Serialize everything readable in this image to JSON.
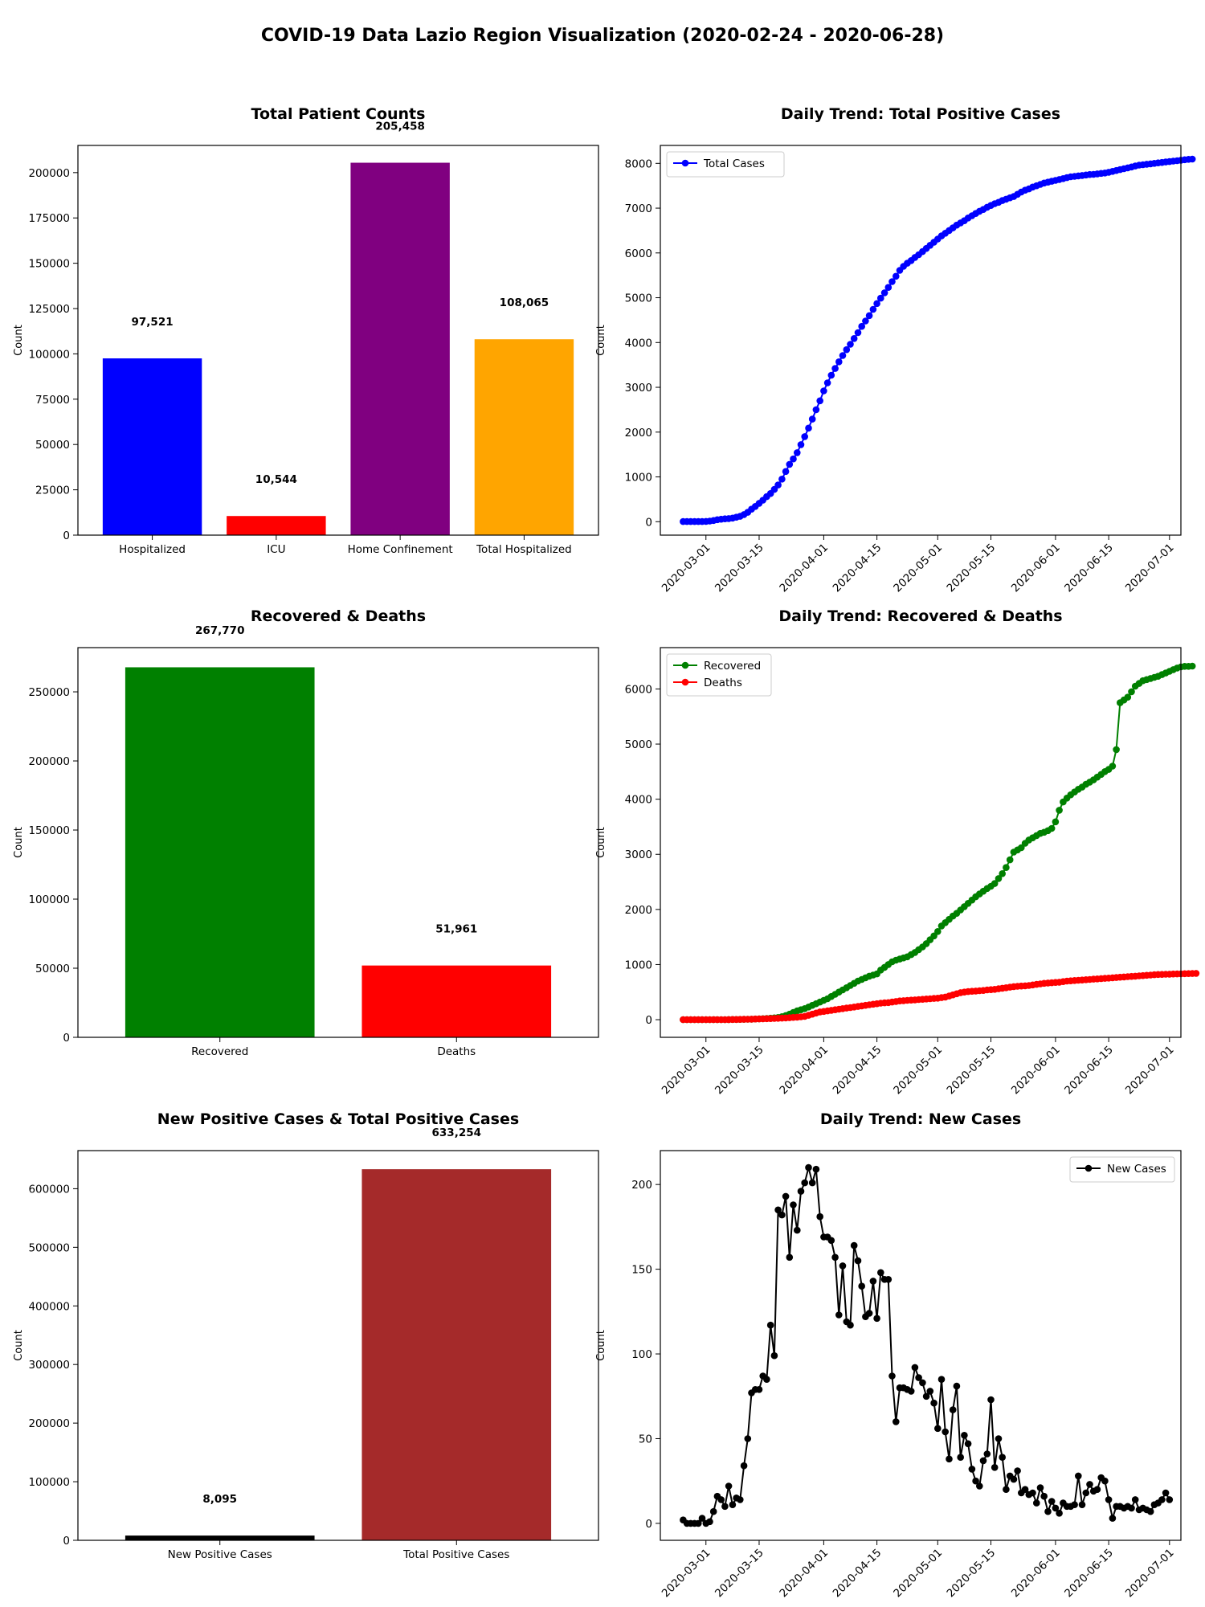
{
  "figure_title": "COVID-19 Data Lazio Region Visualization (2020-02-24 - 2020-06-28)",
  "chart_data": [
    {
      "id": "patients",
      "type": "bar",
      "title": "Total Patient Counts",
      "ylabel": "Count",
      "ylim": [
        0,
        215000
      ],
      "yticks": [
        0,
        25000,
        50000,
        75000,
        100000,
        125000,
        150000,
        175000,
        200000
      ],
      "categories": [
        "Hospitalized",
        "ICU",
        "Home Confinement",
        "Total Hospitalized"
      ],
      "values": [
        97521,
        10544,
        205458,
        108065
      ],
      "value_labels": [
        "97,521",
        "10,544",
        "205,458",
        "108,065"
      ],
      "colors": [
        "#0000ff",
        "#ff0000",
        "#800080",
        "#ffa500"
      ]
    },
    {
      "id": "positive",
      "type": "line",
      "title": "Daily Trend: Total Positive Cases",
      "ylabel": "Count",
      "ylim": [
        -300,
        8400
      ],
      "yticks": [
        0,
        1000,
        2000,
        3000,
        4000,
        5000,
        6000,
        7000,
        8000
      ],
      "xrange": [
        "2020-02-18",
        "2020-07-04"
      ],
      "xticks": [
        "2020-03-01",
        "2020-03-15",
        "2020-04-01",
        "2020-04-15",
        "2020-05-01",
        "2020-05-15",
        "2020-06-01",
        "2020-06-15",
        "2020-07-01"
      ],
      "start_date": "2020-02-24",
      "legend": "top-left",
      "series": [
        {
          "name": "Total Cases",
          "color": "#0000ff",
          "values": [
            3,
            3,
            3,
            3,
            3,
            3,
            6,
            14,
            27,
            44,
            56,
            64,
            70,
            80,
            100,
            120,
            160,
            210,
            280,
            340,
            410,
            480,
            560,
            630,
            720,
            820,
            950,
            1120,
            1280,
            1400,
            1540,
            1720,
            1900,
            2090,
            2290,
            2500,
            2700,
            2920,
            3100,
            3270,
            3420,
            3570,
            3710,
            3840,
            3960,
            4090,
            4220,
            4360,
            4480,
            4600,
            4740,
            4870,
            4990,
            5110,
            5230,
            5360,
            5480,
            5610,
            5700,
            5770,
            5830,
            5900,
            5960,
            6030,
            6100,
            6170,
            6240,
            6310,
            6380,
            6440,
            6500,
            6560,
            6620,
            6670,
            6720,
            6780,
            6830,
            6880,
            6930,
            6970,
            7020,
            7060,
            7100,
            7130,
            7170,
            7200,
            7230,
            7260,
            7310,
            7360,
            7400,
            7430,
            7470,
            7500,
            7530,
            7560,
            7580,
            7600,
            7620,
            7640,
            7660,
            7680,
            7700,
            7710,
            7720,
            7730,
            7740,
            7750,
            7755,
            7765,
            7775,
            7785,
            7800,
            7820,
            7840,
            7860,
            7880,
            7900,
            7920,
            7940,
            7960,
            7970,
            7980,
            7990,
            8000,
            8010,
            8020,
            8030,
            8040,
            8050,
            8060,
            8070,
            8080,
            8090,
            8095
          ]
        }
      ]
    },
    {
      "id": "recovered_deaths",
      "type": "bar",
      "title": "Recovered & Deaths",
      "ylabel": "Count",
      "ylim": [
        0,
        282000
      ],
      "yticks": [
        0,
        50000,
        100000,
        150000,
        200000,
        250000
      ],
      "categories": [
        "Recovered",
        "Deaths"
      ],
      "values": [
        267770,
        51961
      ],
      "value_labels": [
        "267,770",
        "51,961"
      ],
      "colors": [
        "#008000",
        "#ff0000"
      ]
    },
    {
      "id": "recovered_deaths_trend",
      "type": "line",
      "title": "Daily Trend: Recovered & Deaths",
      "ylabel": "Count",
      "ylim": [
        -320,
        6750
      ],
      "yticks": [
        0,
        1000,
        2000,
        3000,
        4000,
        5000,
        6000
      ],
      "xrange": [
        "2020-02-18",
        "2020-07-04"
      ],
      "xticks": [
        "2020-03-01",
        "2020-03-15",
        "2020-04-01",
        "2020-04-15",
        "2020-05-01",
        "2020-05-15",
        "2020-06-01",
        "2020-06-15",
        "2020-07-01"
      ],
      "start_date": "2020-02-24",
      "legend": "top-left",
      "series": [
        {
          "name": "Recovered",
          "color": "#008000",
          "values": [
            0,
            0,
            0,
            0,
            0,
            0,
            0,
            0,
            1,
            1,
            1,
            1,
            2,
            3,
            4,
            5,
            6,
            8,
            10,
            12,
            15,
            18,
            22,
            27,
            33,
            40,
            55,
            75,
            100,
            130,
            160,
            180,
            200,
            230,
            260,
            290,
            320,
            350,
            380,
            420,
            460,
            500,
            540,
            580,
            620,
            660,
            700,
            730,
            760,
            790,
            810,
            830,
            900,
            950,
            1000,
            1050,
            1080,
            1100,
            1120,
            1140,
            1180,
            1220,
            1270,
            1320,
            1380,
            1450,
            1520,
            1600,
            1700,
            1760,
            1820,
            1880,
            1930,
            1990,
            2050,
            2110,
            2170,
            2230,
            2280,
            2330,
            2380,
            2420,
            2470,
            2560,
            2650,
            2760,
            2900,
            3040,
            3080,
            3120,
            3200,
            3260,
            3300,
            3340,
            3380,
            3400,
            3430,
            3470,
            3590,
            3800,
            3950,
            4020,
            4080,
            4130,
            4180,
            4220,
            4270,
            4310,
            4350,
            4400,
            4450,
            4500,
            4540,
            4600,
            4900,
            5750,
            5800,
            5850,
            5950,
            6050,
            6100,
            6150,
            6170,
            6190,
            6210,
            6230,
            6260,
            6290,
            6320,
            6350,
            6380,
            6400,
            6410,
            6410,
            6414
          ]
        },
        {
          "name": "Deaths",
          "color": "#ff0000",
          "values": [
            0,
            0,
            0,
            0,
            0,
            0,
            0,
            0,
            0,
            0,
            0,
            1,
            2,
            3,
            4,
            5,
            6,
            8,
            10,
            12,
            14,
            16,
            18,
            20,
            22,
            25,
            28,
            32,
            36,
            41,
            46,
            52,
            60,
            80,
            100,
            120,
            140,
            150,
            160,
            170,
            180,
            190,
            200,
            210,
            220,
            230,
            240,
            250,
            260,
            270,
            280,
            290,
            300,
            305,
            310,
            320,
            330,
            340,
            345,
            350,
            355,
            360,
            365,
            370,
            375,
            380,
            385,
            390,
            400,
            410,
            430,
            450,
            470,
            490,
            500,
            510,
            515,
            520,
            525,
            530,
            540,
            545,
            550,
            560,
            570,
            580,
            590,
            600,
            605,
            610,
            615,
            620,
            630,
            640,
            650,
            660,
            665,
            670,
            675,
            680,
            690,
            700,
            705,
            710,
            715,
            720,
            725,
            730,
            735,
            740,
            745,
            750,
            755,
            760,
            765,
            770,
            775,
            780,
            785,
            790,
            795,
            800,
            805,
            810,
            815,
            820,
            822,
            824,
            826,
            828,
            830,
            832,
            834,
            836,
            838,
            840
          ]
        }
      ]
    },
    {
      "id": "new_total_positive",
      "type": "bar",
      "title": "New Positive Cases & Total Positive Cases",
      "ylabel": "Count",
      "ylim": [
        0,
        665000
      ],
      "yticks": [
        0,
        100000,
        200000,
        300000,
        400000,
        500000,
        600000
      ],
      "categories": [
        "New Positive Cases",
        "Total Positive Cases"
      ],
      "values": [
        8095,
        633254
      ],
      "value_labels": [
        "8,095",
        "633,254"
      ],
      "colors": [
        "#000000",
        "#a52a2a"
      ]
    },
    {
      "id": "new_cases_trend",
      "type": "line",
      "title": "Daily Trend: New Cases",
      "ylabel": "Count",
      "ylim": [
        -10,
        220
      ],
      "yticks": [
        0,
        50,
        100,
        150,
        200
      ],
      "xrange": [
        "2020-02-18",
        "2020-07-04"
      ],
      "xticks": [
        "2020-03-01",
        "2020-03-15",
        "2020-04-01",
        "2020-04-15",
        "2020-05-01",
        "2020-05-15",
        "2020-06-01",
        "2020-06-15",
        "2020-07-01"
      ],
      "start_date": "2020-02-24",
      "legend": "top-right",
      "series": [
        {
          "name": "New Cases",
          "color": "#000000",
          "values": [
            2,
            0,
            0,
            0,
            0,
            3,
            0,
            1,
            7,
            16,
            14,
            10,
            22,
            11,
            15,
            14,
            34,
            50,
            77,
            79,
            79,
            87,
            85,
            117,
            99,
            185,
            182,
            193,
            157,
            188,
            173,
            196,
            201,
            210,
            201,
            209,
            181,
            169,
            169,
            167,
            157,
            123,
            152,
            119,
            117,
            164,
            155,
            140,
            122,
            124,
            143,
            121,
            148,
            144,
            144,
            87,
            60,
            80,
            80,
            79,
            78,
            92,
            86,
            83,
            75,
            78,
            71,
            56,
            85,
            54,
            38,
            67,
            81,
            39,
            52,
            47,
            32,
            25,
            22,
            37,
            41,
            73,
            33,
            50,
            39,
            20,
            28,
            26,
            31,
            18,
            20,
            17,
            18,
            12,
            21,
            16,
            7,
            13,
            9,
            6,
            12,
            10,
            10,
            11,
            28,
            11,
            18,
            23,
            19,
            20,
            27,
            25,
            14,
            3,
            10,
            10,
            9,
            10,
            9,
            14,
            8,
            9,
            8,
            7,
            11,
            12,
            14,
            18,
            14
          ]
        }
      ]
    }
  ]
}
